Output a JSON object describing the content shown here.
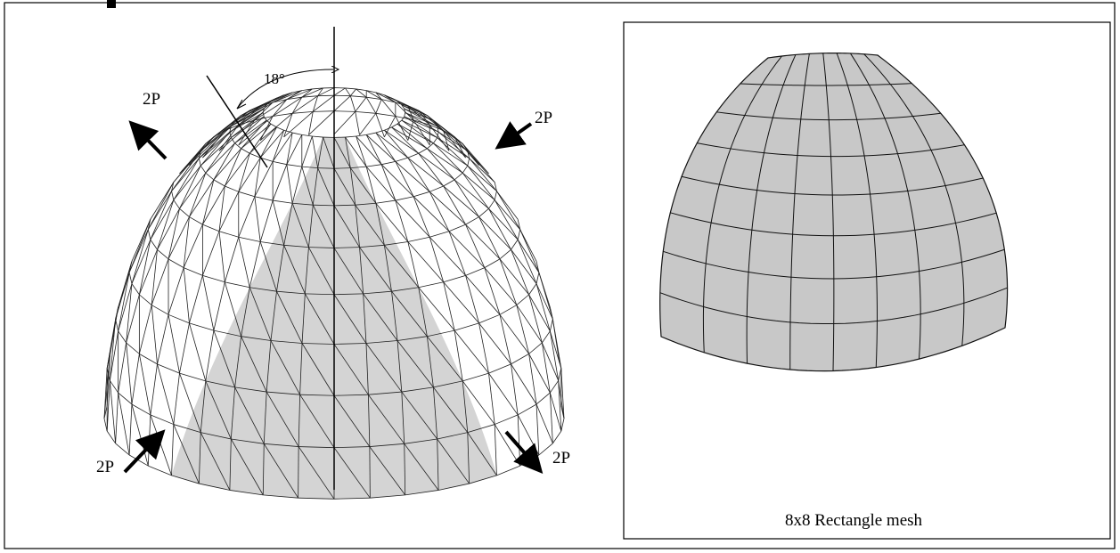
{
  "left_figure": {
    "angle_label": "18°",
    "load_labels": [
      "2P",
      "2P",
      "2P",
      "2P"
    ]
  },
  "right_figure": {
    "caption": "8x8 Rectangle mesh"
  }
}
